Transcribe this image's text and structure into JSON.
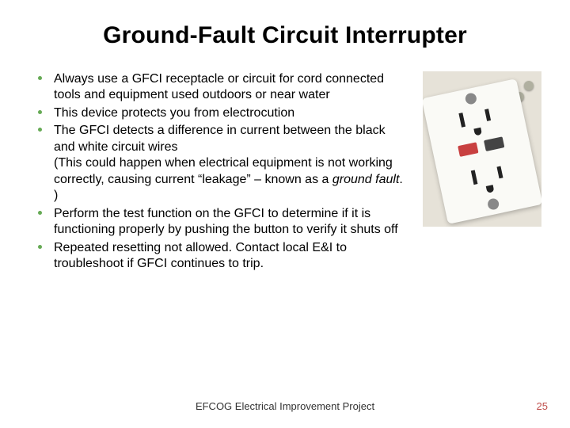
{
  "title": "Ground-Fault Circuit Interrupter",
  "bullets": [
    {
      "text": "Always use a GFCI receptacle or circuit for cord connected tools and equipment used outdoors or near water"
    },
    {
      "text": "This device protects you from electrocution"
    },
    {
      "main": "The GFCI detects a difference in current between the black and white circuit wires",
      "sub_a": "(This could happen when electrical equipment is not working correctly, causing current “leakage” – known as a ",
      "sub_italic": "ground fault",
      "sub_b": ". )"
    },
    {
      "text": "Perform the test function on the GFCI to determine if it is functioning properly by pushing the button to verify it shuts off"
    },
    {
      "text": "Repeated resetting not allowed.  Contact local E&I to troubleshoot if GFCI continues to trip."
    }
  ],
  "footer": "EFCOG Electrical Improvement Project",
  "page_number": "25",
  "colors": {
    "bullet_color": "#66aa55",
    "page_num_color": "#c0504d",
    "background": "#ffffff"
  }
}
